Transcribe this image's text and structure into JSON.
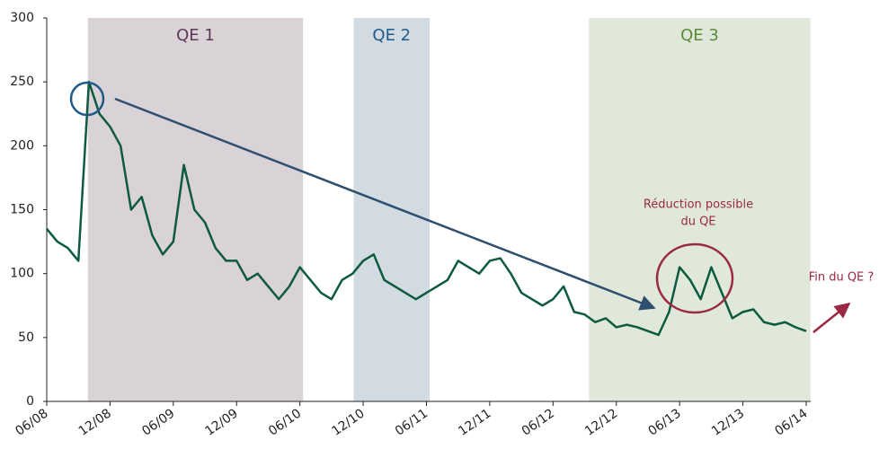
{
  "chart_data": {
    "type": "line",
    "categories": [
      "06/08",
      null,
      null,
      null,
      null,
      null,
      "12/08",
      null,
      null,
      null,
      null,
      null,
      "06/09",
      null,
      null,
      null,
      null,
      null,
      "12/09",
      null,
      null,
      null,
      null,
      null,
      "06/10",
      null,
      null,
      null,
      null,
      null,
      "12/10",
      null,
      null,
      null,
      null,
      null,
      "06/11",
      null,
      null,
      null,
      null,
      null,
      "12/11",
      null,
      null,
      null,
      null,
      null,
      "06/12",
      null,
      null,
      null,
      null,
      null,
      "12/12",
      null,
      null,
      null,
      null,
      null,
      "06/13",
      null,
      null,
      null,
      null,
      null,
      "12/13",
      null,
      null,
      null,
      null,
      null,
      "06/14"
    ],
    "series": [
      {
        "color": "#0e5a3e",
        "values": [
          135,
          125,
          120,
          110,
          250,
          225,
          215,
          200,
          150,
          160,
          130,
          115,
          125,
          185,
          150,
          140,
          120,
          110,
          110,
          95,
          100,
          90,
          80,
          90,
          105,
          95,
          85,
          80,
          95,
          100,
          110,
          115,
          95,
          90,
          85,
          80,
          85,
          90,
          95,
          110,
          105,
          100,
          110,
          112,
          100,
          85,
          80,
          75,
          80,
          90,
          70,
          68,
          62,
          65,
          58,
          60,
          58,
          55,
          52,
          70,
          105,
          95,
          80,
          105,
          85,
          65,
          70,
          72,
          62,
          60,
          62,
          58,
          55
        ]
      }
    ],
    "ylim": [
      0,
      300
    ],
    "yticks": [
      0,
      50,
      100,
      150,
      200,
      250,
      300
    ],
    "bands": [
      {
        "label": "QE 1",
        "start": 3.9,
        "end": 24.3,
        "color": "#d9d2d6",
        "text_color": "#5b3a5a"
      },
      {
        "label": "QE 2",
        "start": 29.1,
        "end": 36.3,
        "color": "#d3dbe2",
        "text_color": "#1f5a8a"
      },
      {
        "label": "QE 3",
        "start": 51.4,
        "end": 72.4,
        "color": "#e0e8da",
        "text_color": "#5a8a3a"
      }
    ],
    "annotations": [
      "Réduction possible",
      "du QE",
      "Fin du QE ?"
    ]
  }
}
